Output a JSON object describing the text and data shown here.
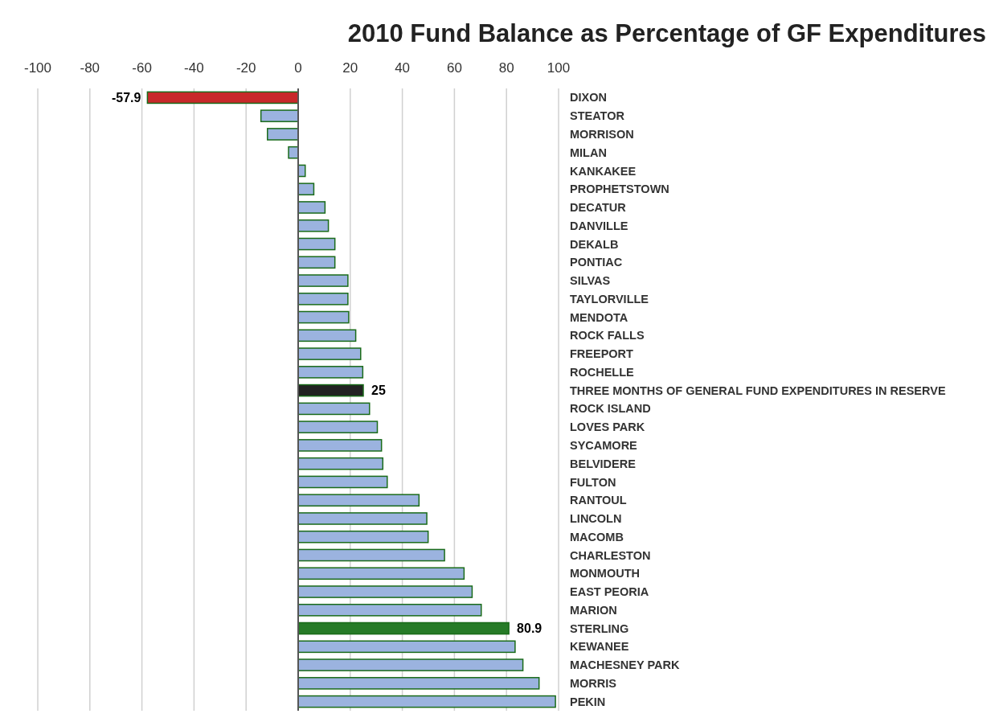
{
  "chart_data": {
    "type": "bar",
    "orientation": "horizontal",
    "title": "2010 Fund Balance as Percentage of GF Expenditures",
    "categories": [
      "DIXON",
      "STEATOR",
      "MORRISON",
      "MILAN",
      "KANKAKEE",
      "PROPHETSTOWN",
      "DECATUR",
      "DANVILLE",
      "DEKALB",
      "PONTIAC",
      "SILVAS",
      "TAYLORVILLE",
      "MENDOTA",
      "ROCK FALLS",
      "FREEPORT",
      "ROCHELLE",
      "THREE MONTHS OF GENERAL FUND EXPENDITURES IN RESERVE",
      "ROCK ISLAND",
      "LOVES PARK",
      "SYCAMORE",
      "BELVIDERE",
      "FULTON",
      "RANTOUL",
      "LINCOLN",
      "MACOMB",
      "CHARLESTON",
      "MONMOUTH",
      "EAST PEORIA",
      "MARION",
      "STERLING",
      "KEWANEE",
      "MACHESNEY PARK",
      "MORRIS",
      "PEKIN"
    ],
    "values": [
      -57.9,
      -14.3,
      -11.8,
      -3.7,
      2.7,
      6.0,
      10.3,
      11.6,
      14.1,
      14.1,
      19.1,
      19.1,
      19.4,
      22.1,
      24.0,
      24.8,
      25,
      27.4,
      30.4,
      32.0,
      32.5,
      34.2,
      46.4,
      49.4,
      49.9,
      56.2,
      63.7,
      66.8,
      70.3,
      80.9,
      83.3,
      86.3,
      92.5,
      98.8
    ],
    "colors": [
      "#c8282a",
      "#9bb3df",
      "#9bb3df",
      "#9bb3df",
      "#9bb3df",
      "#9bb3df",
      "#9bb3df",
      "#9bb3df",
      "#9bb3df",
      "#9bb3df",
      "#9bb3df",
      "#9bb3df",
      "#9bb3df",
      "#9bb3df",
      "#9bb3df",
      "#9bb3df",
      "#222222",
      "#9bb3df",
      "#9bb3df",
      "#9bb3df",
      "#9bb3df",
      "#9bb3df",
      "#9bb3df",
      "#9bb3df",
      "#9bb3df",
      "#9bb3df",
      "#9bb3df",
      "#9bb3df",
      "#9bb3df",
      "#267b27",
      "#9bb3df",
      "#9bb3df",
      "#9bb3df",
      "#9bb3df"
    ],
    "value_labels": [
      "-57.9",
      null,
      null,
      null,
      null,
      null,
      null,
      null,
      null,
      null,
      null,
      null,
      null,
      null,
      null,
      null,
      "25",
      null,
      null,
      null,
      null,
      null,
      null,
      null,
      null,
      null,
      null,
      null,
      null,
      "80.9",
      null,
      null,
      null,
      null
    ],
    "xlim": [
      -100,
      100
    ],
    "xticks": [
      -100,
      -80,
      -60,
      -40,
      -20,
      0,
      20,
      40,
      60,
      80,
      100
    ],
    "grid": "x"
  }
}
